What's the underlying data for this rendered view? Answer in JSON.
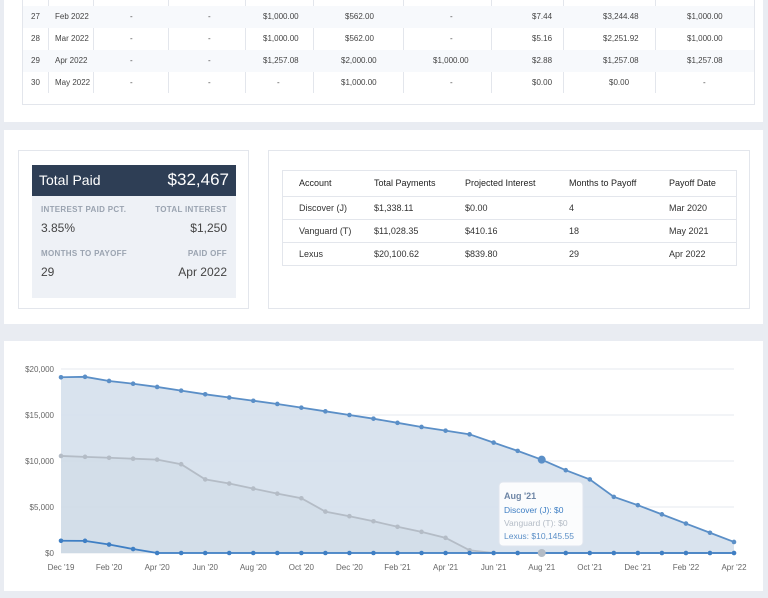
{
  "schedule": {
    "rows": [
      {
        "no": "27",
        "month": "Feb 2022",
        "c1": "-",
        "c2": "-",
        "c3": "$1,000.00",
        "c4": "$562.00",
        "c5": "-",
        "c6": "$7.44",
        "c7": "$3,244.48",
        "c8": "$1,000.00"
      },
      {
        "no": "28",
        "month": "Mar 2022",
        "c1": "-",
        "c2": "-",
        "c3": "$1,000.00",
        "c4": "$562.00",
        "c5": "-",
        "c6": "$5.16",
        "c7": "$2,251.92",
        "c8": "$1,000.00"
      },
      {
        "no": "29",
        "month": "Apr 2022",
        "c1": "-",
        "c2": "-",
        "c3": "$1,257.08",
        "c4": "$2,000.00",
        "c5": "$1,000.00",
        "c6": "$2.88",
        "c7": "$1,257.08",
        "c8": "$1,257.08"
      },
      {
        "no": "30",
        "month": "May 2022",
        "c1": "-",
        "c2": "-",
        "c3": "-",
        "c4": "$1,000.00",
        "c5": "-",
        "c6": "$0.00",
        "c7": "$0.00",
        "c8": "-"
      }
    ]
  },
  "summary": {
    "total_paid_label": "Total Paid",
    "total_paid_value": "$32,467",
    "interest_pct_label": "INTEREST PAID PCT.",
    "interest_pct_value": "3.85%",
    "total_interest_label": "TOTAL INTEREST",
    "total_interest_value": "$1,250",
    "months_label": "MONTHS TO PAYOFF",
    "months_value": "29",
    "paid_off_label": "PAID OFF",
    "paid_off_value": "Apr 2022"
  },
  "accounts": {
    "headers": [
      "Account",
      "Total Payments",
      "Projected Interest",
      "Months to Payoff",
      "Payoff Date"
    ],
    "rows": [
      [
        "Discover (J)",
        "$1,338.11",
        "$0.00",
        "4",
        "Mar 2020"
      ],
      [
        "Vanguard (T)",
        "$11,028.35",
        "$410.16",
        "18",
        "May 2021"
      ],
      [
        "Lexus",
        "$20,100.62",
        "$839.80",
        "29",
        "Apr 2022"
      ]
    ]
  },
  "colors": {
    "lexus": "#5b8fc7",
    "vanguard": "#b4bcc6",
    "discover": "#3f7fc4",
    "area": "#d5e0ec",
    "header_dark": "#2e3e55"
  },
  "chart_data": {
    "type": "area",
    "x": [
      "Dec '19",
      "Jan '20",
      "Feb '20",
      "Mar '20",
      "Apr '20",
      "May '20",
      "Jun '20",
      "Jul '20",
      "Aug '20",
      "Sep '20",
      "Oct '20",
      "Nov '20",
      "Dec '20",
      "Jan '21",
      "Feb '21",
      "Mar '21",
      "Apr '21",
      "May '21",
      "Jun '21",
      "Jul '21",
      "Aug '21",
      "Sep '21",
      "Oct '21",
      "Nov '21",
      "Dec '21",
      "Jan '22",
      "Feb '22",
      "Mar '22",
      "Apr '22"
    ],
    "x_tick_labels": [
      "Dec '19",
      "Feb '20",
      "Apr '20",
      "Jun '20",
      "Aug '20",
      "Oct '20",
      "Dec '20",
      "Feb '21",
      "Apr '21",
      "Jun '21",
      "Aug '21",
      "Oct '21",
      "Dec '21",
      "Feb '22",
      "Apr '22"
    ],
    "y_ticks": [
      "$0",
      "$5,000",
      "$10,000",
      "$15,000",
      "$20,000"
    ],
    "ylim": [
      0,
      20000
    ],
    "series": [
      {
        "name": "Lexus",
        "values": [
          19100,
          19150,
          18700,
          18400,
          18050,
          17650,
          17250,
          16900,
          16550,
          16200,
          15800,
          15400,
          15000,
          14600,
          14150,
          13700,
          13300,
          12900,
          12000,
          11100,
          10145.55,
          9000,
          8000,
          6100,
          5200,
          4200,
          3200,
          2200,
          1200
        ]
      },
      {
        "name": "Vanguard (T)",
        "values": [
          10550,
          10450,
          10350,
          10250,
          10150,
          9650,
          8000,
          7550,
          7000,
          6450,
          5950,
          4500,
          4000,
          3450,
          2850,
          2300,
          1650,
          300,
          0,
          0,
          0,
          0,
          0,
          0,
          0,
          0,
          0,
          0,
          0
        ]
      },
      {
        "name": "Discover (J)",
        "values": [
          1330,
          1320,
          920,
          430,
          0,
          0,
          0,
          0,
          0,
          0,
          0,
          0,
          0,
          0,
          0,
          0,
          0,
          0,
          0,
          0,
          0,
          0,
          0,
          0,
          0,
          0,
          0,
          0,
          0
        ]
      }
    ],
    "tooltip": {
      "title": "Aug '21",
      "lines": [
        "Discover (J): $0",
        "Vanguard (T): $0",
        "Lexus: $10,145.55"
      ]
    },
    "grid": true
  }
}
